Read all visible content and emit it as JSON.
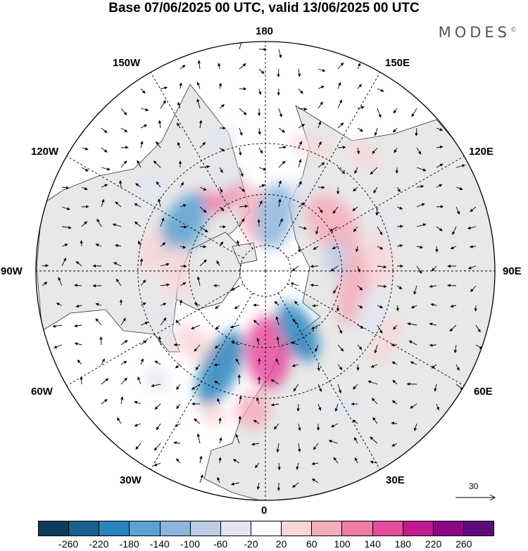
{
  "title": "Base 07/06/2025 00 UTC, valid 13/06/2025 00 UTC",
  "brand": "MODES",
  "brand_mark": "©",
  "longitude_labels": {
    "top": "180",
    "bottom": "0",
    "left": "90W",
    "right": "90E",
    "upper_left_1": "150W",
    "upper_left_2": "120W",
    "upper_right_1": "150E",
    "upper_right_2": "120E",
    "lower_left_1": "60W",
    "lower_left_2": "30W",
    "lower_right_1": "60E",
    "lower_right_2": "30E"
  },
  "vector_scale": {
    "label": "30"
  },
  "colorbar": {
    "colors": [
      "#0d3d5c",
      "#17608f",
      "#2a84bd",
      "#5aa2d2",
      "#8cb6de",
      "#bccbe6",
      "#e3e5f2",
      "#ffffff",
      "#f9d6d8",
      "#f5adbb",
      "#f07ca7",
      "#e64c9c",
      "#c01b8e",
      "#8c0a85",
      "#5c0a7a"
    ],
    "ticks": [
      "-260",
      "-220",
      "-180",
      "-140",
      "-100",
      "-60",
      "-20",
      "20",
      "60",
      "100",
      "140",
      "180",
      "220",
      "260"
    ]
  },
  "anomaly_blobs": [
    {
      "lon": -148,
      "lat": 55,
      "value": 110,
      "rx": 42,
      "ry": 22
    },
    {
      "lon": -172,
      "lat": 68,
      "value": 90,
      "rx": 26,
      "ry": 40
    },
    {
      "lon": -155,
      "lat": 50,
      "value": -50,
      "rx": 30,
      "ry": 18
    },
    {
      "lon": 170,
      "lat": 68,
      "value": -110,
      "rx": 26,
      "ry": 48
    },
    {
      "lon": 150,
      "lat": 55,
      "value": -40,
      "rx": 30,
      "ry": 20
    },
    {
      "lon": 125,
      "lat": 58,
      "value": 90,
      "rx": 48,
      "ry": 32
    },
    {
      "lon": 110,
      "lat": 40,
      "value": -40,
      "rx": 30,
      "ry": 18
    },
    {
      "lon": -118,
      "lat": 53,
      "value": -160,
      "rx": 52,
      "ry": 28
    },
    {
      "lon": -125,
      "lat": 35,
      "value": -40,
      "rx": 34,
      "ry": 22
    },
    {
      "lon": -90,
      "lat": 55,
      "value": 60,
      "rx": 36,
      "ry": 20
    },
    {
      "lon": -100,
      "lat": 45,
      "value": 40,
      "rx": 30,
      "ry": 18
    },
    {
      "lon": -65,
      "lat": 45,
      "value": -50,
      "rx": 20,
      "ry": 16
    },
    {
      "lon": -45,
      "lat": 50,
      "value": 50,
      "rx": 30,
      "ry": 22
    },
    {
      "lon": -25,
      "lat": 48,
      "value": -190,
      "rx": 26,
      "ry": 58
    },
    {
      "lon": -45,
      "lat": 30,
      "value": -40,
      "rx": 20,
      "ry": 14
    },
    {
      "lon": 2,
      "lat": 58,
      "value": 150,
      "rx": 32,
      "ry": 52
    },
    {
      "lon": -5,
      "lat": 35,
      "value": 80,
      "rx": 24,
      "ry": 26
    },
    {
      "lon": -20,
      "lat": 30,
      "value": 40,
      "rx": 20,
      "ry": 14
    },
    {
      "lon": 28,
      "lat": 63,
      "value": -180,
      "rx": 24,
      "ry": 46
    },
    {
      "lon": 30,
      "lat": 28,
      "value": -30,
      "rx": 30,
      "ry": 14
    },
    {
      "lon": 80,
      "lat": 55,
      "value": 80,
      "rx": 56,
      "ry": 22
    },
    {
      "lon": 70,
      "lat": 45,
      "value": -40,
      "rx": 36,
      "ry": 20
    },
    {
      "lon": 100,
      "lat": 62,
      "value": -90,
      "rx": 26,
      "ry": 16
    },
    {
      "lon": 95,
      "lat": 45,
      "value": 50,
      "rx": 40,
      "ry": 20
    },
    {
      "lon": 60,
      "lat": 35,
      "value": 40,
      "rx": 40,
      "ry": 14
    },
    {
      "lon": -160,
      "lat": 35,
      "value": -40,
      "rx": 26,
      "ry": 16
    },
    {
      "lon": 160,
      "lat": 38,
      "value": 40,
      "rx": 30,
      "ry": 14
    },
    {
      "lon": 140,
      "lat": 30,
      "value": 40,
      "rx": 30,
      "ry": 14
    }
  ]
}
